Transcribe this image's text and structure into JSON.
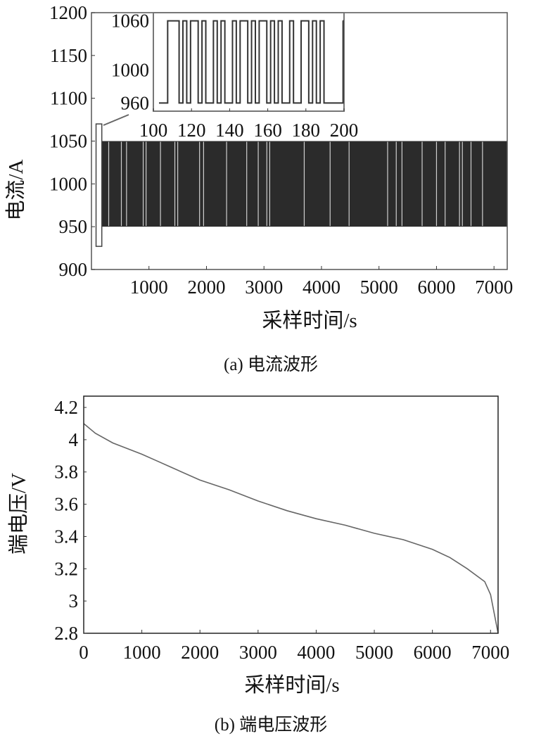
{
  "chart_data": [
    {
      "type": "line",
      "title": "(a) 电流波形",
      "xlabel": "采样时间/s",
      "ylabel": "电流/A",
      "xlim": [
        0,
        7230
      ],
      "ylim": [
        900,
        1200
      ],
      "xticks": [
        1000,
        2000,
        3000,
        4000,
        5000,
        6000,
        7000
      ],
      "yticks": [
        900,
        950,
        1000,
        1050,
        1100,
        1150,
        1200
      ],
      "series": [
        {
          "name": "current",
          "description_levels": {
            "low": 950,
            "high": 1050
          },
          "time_range": [
            180,
            7230
          ],
          "initial_pulse": {
            "t": [
              80,
              180
            ],
            "high": 1070,
            "low": 927
          },
          "white_gap_times": [
            300,
            520,
            610,
            900,
            950,
            1200,
            1450,
            1500,
            1880,
            1950,
            2350,
            2700,
            2900,
            3050,
            3100,
            3700,
            4150,
            4480,
            5150,
            5300,
            5400,
            5750,
            6000,
            6150,
            6400,
            6450,
            6600,
            6800
          ]
        }
      ],
      "inset": {
        "xlim": [
          100,
          200
        ],
        "ylim": [
          950,
          1070
        ],
        "xticks": [
          100,
          120,
          140,
          160,
          180,
          200
        ],
        "yticks": [
          960,
          1000,
          1060
        ],
        "levels": {
          "low": 960,
          "high": 1060
        },
        "state_every_2s": [
          0,
          0,
          0,
          1,
          1,
          1,
          0,
          1,
          0,
          1,
          1,
          0,
          1,
          0,
          0,
          1,
          0,
          1,
          0,
          0,
          1,
          0,
          1,
          1,
          0,
          1,
          0,
          1,
          1,
          0,
          1,
          0,
          1,
          0,
          0,
          1,
          0,
          0,
          1,
          1,
          0,
          1,
          0,
          1,
          0,
          0,
          0,
          0,
          0,
          1
        ]
      }
    },
    {
      "type": "line",
      "title": "(b) 端电压波形",
      "xlabel": "采样时间/s",
      "ylabel": "端电压/V",
      "xlim": [
        0,
        7130
      ],
      "ylim": [
        2.8,
        4.27
      ],
      "xticks": [
        0,
        1000,
        2000,
        3000,
        4000,
        5000,
        6000,
        7000
      ],
      "yticks": [
        2.8,
        3,
        3.2,
        3.4,
        3.6,
        3.8,
        4,
        4.2
      ],
      "series": [
        {
          "name": "terminal voltage",
          "x": [
            0,
            200,
            500,
            1000,
            1250,
            1500,
            2000,
            2500,
            3000,
            3500,
            4000,
            4500,
            5000,
            5500,
            6000,
            6300,
            6600,
            6900,
            7000,
            7130
          ],
          "y": [
            4.1,
            4.04,
            3.98,
            3.91,
            3.87,
            3.83,
            3.75,
            3.69,
            3.62,
            3.56,
            3.51,
            3.47,
            3.42,
            3.38,
            3.32,
            3.27,
            3.2,
            3.12,
            3.04,
            2.8
          ]
        }
      ]
    }
  ]
}
